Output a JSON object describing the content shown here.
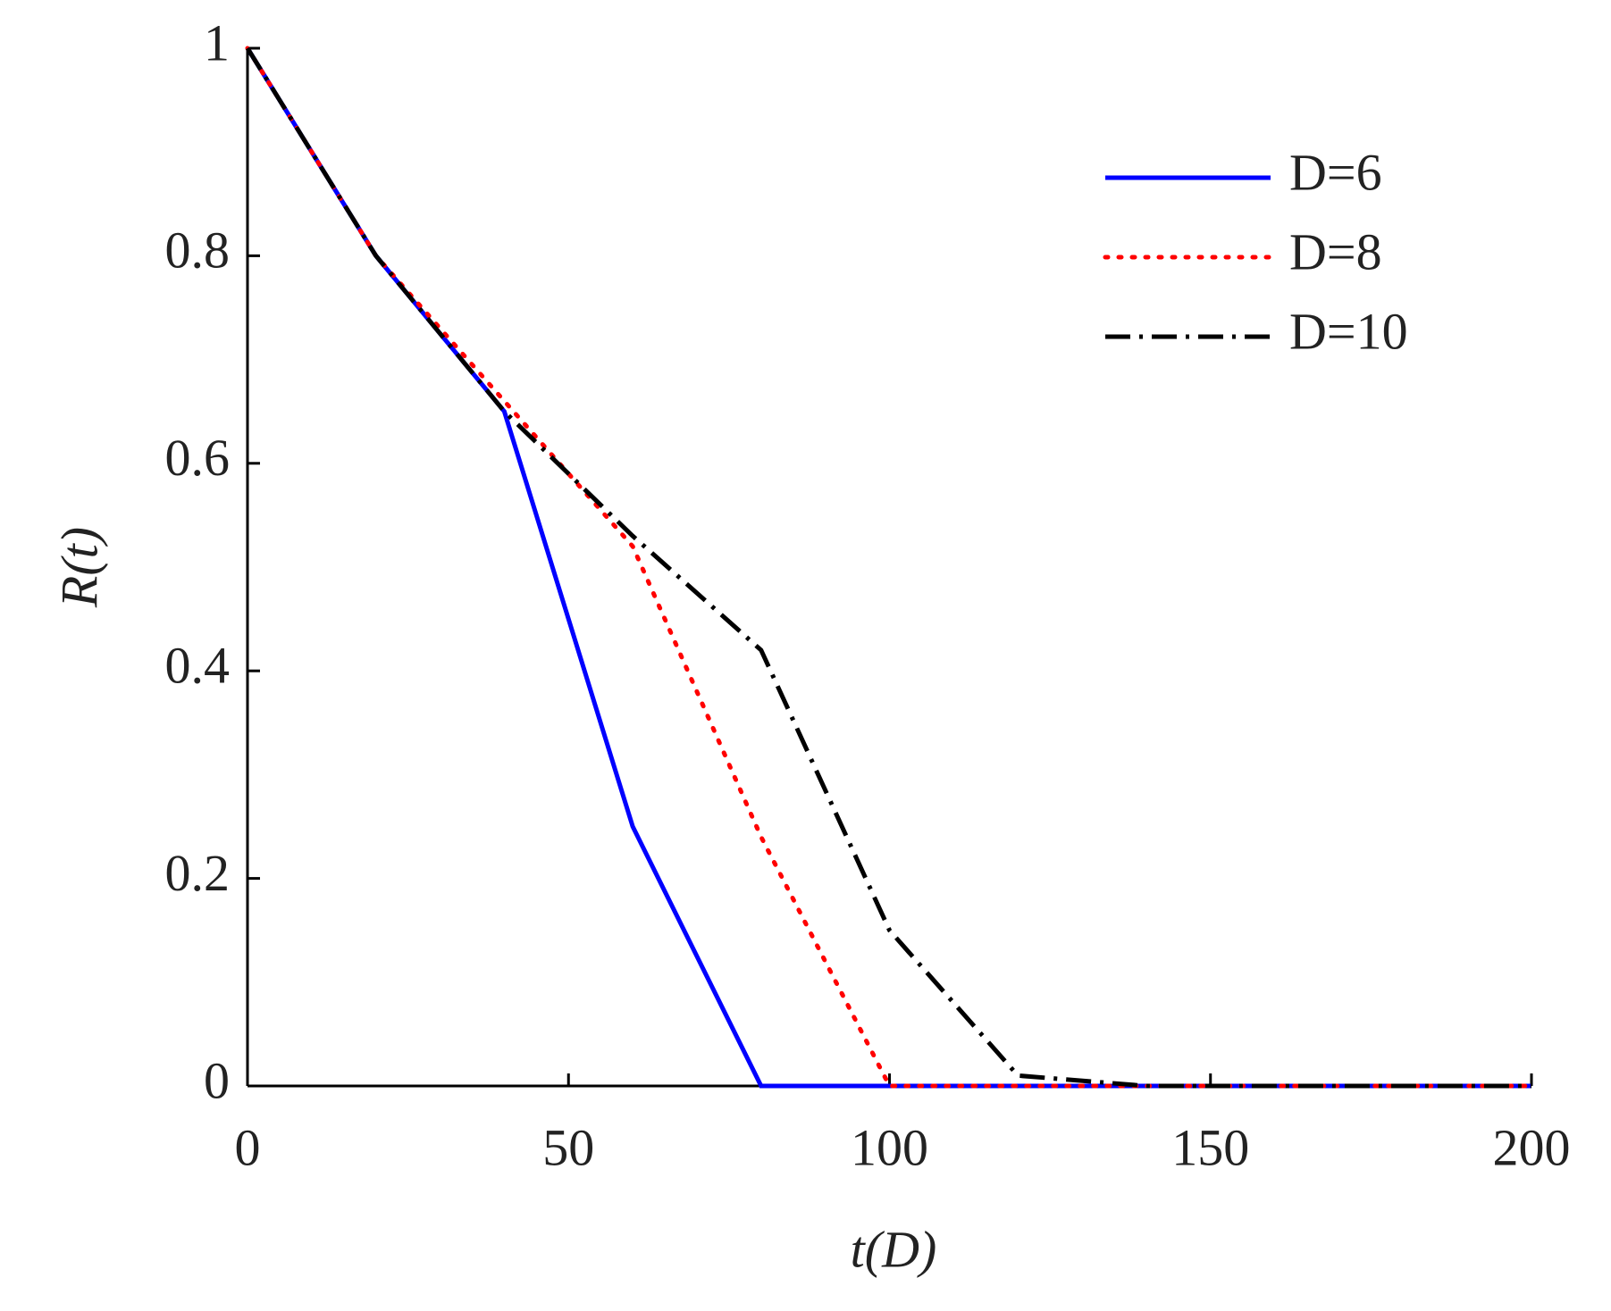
{
  "chart_data": {
    "type": "line",
    "x_label": "t(D)",
    "y_label": "R(t)",
    "x": [
      0,
      20,
      40,
      60,
      80,
      100,
      120,
      140,
      160,
      180,
      200
    ],
    "series": [
      {
        "name": "D=6",
        "color": "#0000ff",
        "style": "solid",
        "values": [
          1,
          0.8,
          0.65,
          0.25,
          0,
          0,
          0,
          0,
          0,
          0,
          0
        ]
      },
      {
        "name": "D=8",
        "color": "#ff0000",
        "style": "dotted",
        "values": [
          1,
          0.8,
          0.66,
          0.52,
          0.24,
          0,
          0,
          0,
          0,
          0,
          0
        ]
      },
      {
        "name": "D=10",
        "color": "#000000",
        "style": "dashdot",
        "values": [
          1,
          0.8,
          0.65,
          0.53,
          0.42,
          0.15,
          0.01,
          0,
          0,
          0,
          0
        ]
      }
    ],
    "xlim": [
      0,
      200
    ],
    "xticks": [
      0,
      50,
      100,
      150,
      200
    ],
    "ylim": [
      0,
      1
    ],
    "yticks": [
      0,
      0.2,
      0.4,
      0.6,
      0.8,
      1
    ],
    "grid": false,
    "legend": "upper right"
  }
}
